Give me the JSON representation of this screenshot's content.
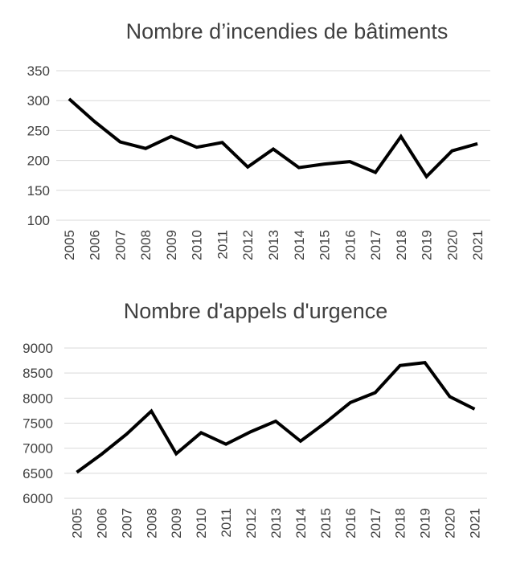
{
  "chart_data": [
    {
      "type": "line",
      "title": "Nombre d’incendies de bâtiments",
      "xlabel": "",
      "ylabel": "",
      "categories": [
        "2005",
        "2006",
        "2007",
        "2008",
        "2009",
        "2010",
        "2011",
        "2012",
        "2013",
        "2014",
        "2015",
        "2016",
        "2017",
        "2018",
        "2019",
        "2020",
        "2021"
      ],
      "series": [
        {
          "values": [
            303,
            265,
            231,
            220,
            240,
            222,
            230,
            189,
            219,
            188,
            194,
            198,
            180,
            240,
            173,
            216,
            228
          ]
        }
      ],
      "ylim": [
        100,
        350
      ],
      "yticks": [
        "100",
        "150",
        "200",
        "250",
        "300",
        "350"
      ],
      "grid": true,
      "line_color": "#000000"
    },
    {
      "type": "line",
      "title": "Nombre d'appels d'urgence",
      "xlabel": "",
      "ylabel": "",
      "categories": [
        "2005",
        "2006",
        "2007",
        "2008",
        "2009",
        "2010",
        "2011",
        "2012",
        "2013",
        "2014",
        "2015",
        "2016",
        "2017",
        "2018",
        "2019",
        "2020",
        "2021"
      ],
      "series": [
        {
          "values": [
            6520,
            6880,
            7280,
            7740,
            6890,
            7310,
            7080,
            7330,
            7540,
            7140,
            7510,
            7910,
            8110,
            8650,
            8710,
            8030,
            7780
          ]
        }
      ],
      "ylim": [
        6000,
        9000
      ],
      "yticks": [
        "6000",
        "6500",
        "7000",
        "7500",
        "8000",
        "8500",
        "9000"
      ],
      "grid": true,
      "line_color": "#000000"
    }
  ]
}
